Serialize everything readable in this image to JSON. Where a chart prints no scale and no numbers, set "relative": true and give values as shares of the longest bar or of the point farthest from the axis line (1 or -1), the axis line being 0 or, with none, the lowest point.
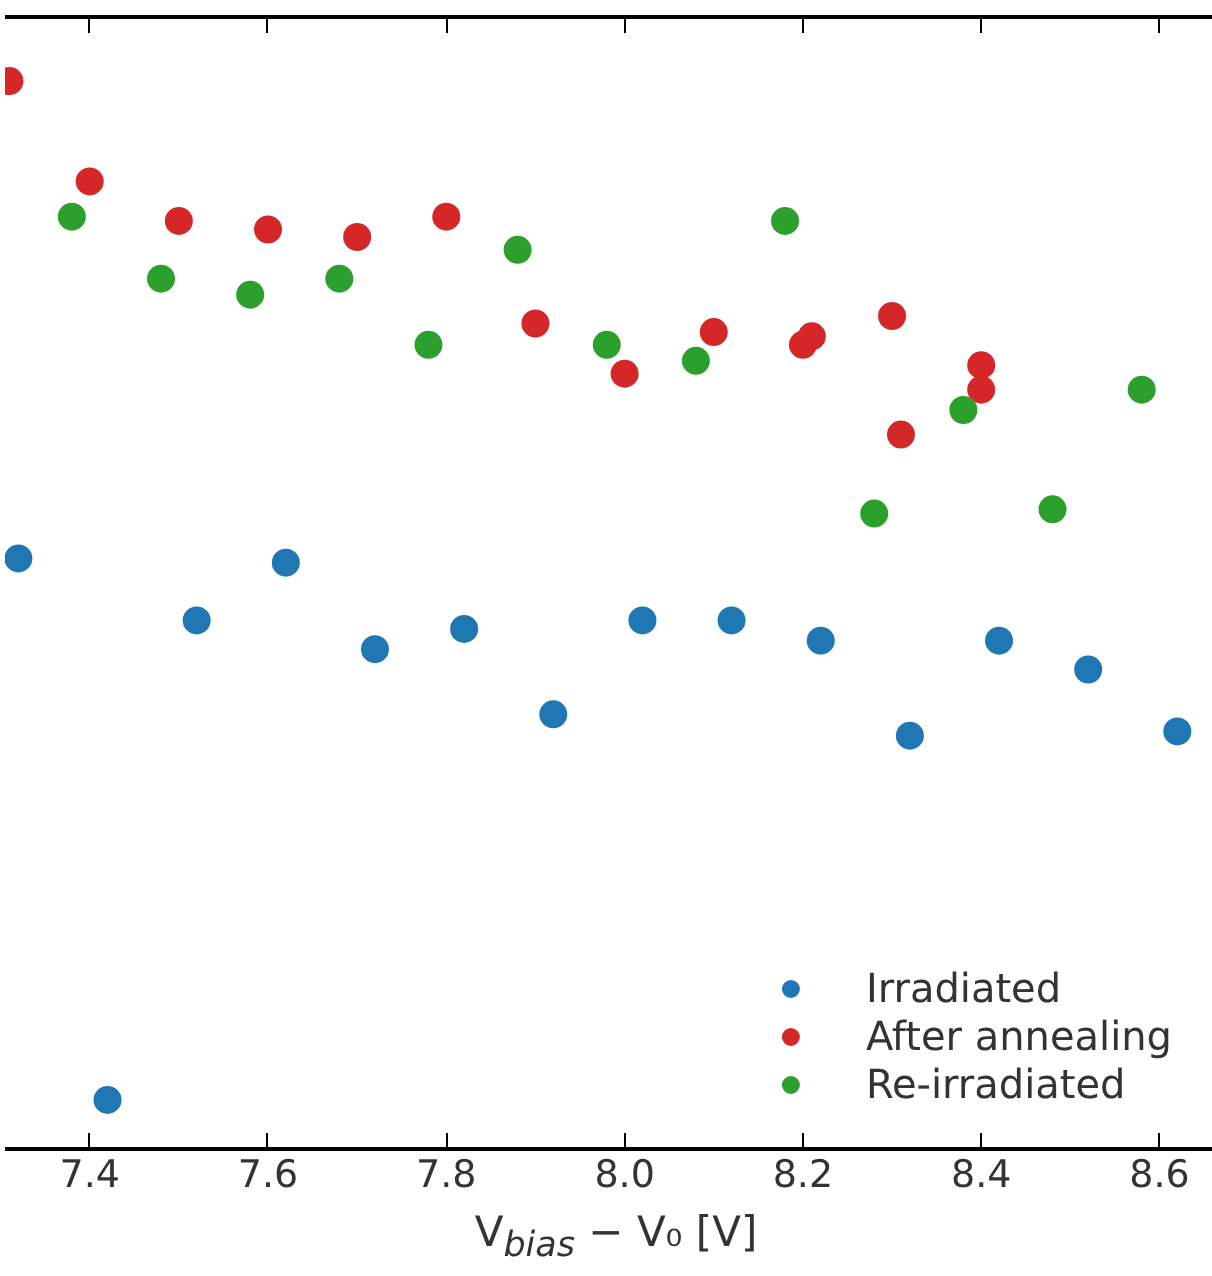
{
  "chart_data": {
    "type": "scatter",
    "relative": true,
    "xlabel": "V$_{bias}$ − V₀ [V]",
    "xlim": [
      7.305,
      8.66
    ],
    "xticks": [
      7.4,
      7.6,
      7.8,
      {
        "value": 8,
        "label": "8.0"
      },
      8.2,
      8.4,
      8.6
    ],
    "grid": false,
    "legend": "bottom right",
    "marker": "circle",
    "tick_labels": "x",
    "series": [
      {
        "name": "Irradiated",
        "color": "#1f77b4",
        "x": [
          7.32,
          7.42,
          7.52,
          7.62,
          7.72,
          7.82,
          7.92,
          8.02,
          8.12,
          8.22,
          8.32,
          8.42,
          8.52,
          8.62
        ],
        "values": [
          0.553,
          0.046,
          0.495,
          0.549,
          0.468,
          0.487,
          0.407,
          0.495,
          0.495,
          0.476,
          0.387,
          0.476,
          0.449,
          0.391
        ]
      },
      {
        "name": "After annealing",
        "color": "#d62728",
        "x": [
          7.31,
          7.4,
          7.5,
          7.6,
          7.7,
          7.8,
          7.9,
          8.0,
          8.1,
          8.2,
          8.21,
          8.3,
          8.31,
          8.4,
          8.4
        ],
        "values": [
          1.0,
          0.906,
          0.869,
          0.861,
          0.854,
          0.873,
          0.773,
          0.726,
          0.765,
          0.753,
          0.761,
          0.78,
          0.669,
          0.734,
          0.711
        ]
      },
      {
        "name": "Re-irradiated",
        "color": "#2ca02c",
        "x": [
          7.38,
          7.48,
          7.58,
          7.68,
          7.78,
          7.88,
          7.98,
          8.08,
          8.18,
          8.28,
          8.38,
          8.48,
          8.58
        ],
        "values": [
          0.873,
          0.815,
          0.8,
          0.815,
          0.753,
          0.842,
          0.753,
          0.738,
          0.869,
          0.595,
          0.692,
          0.599,
          0.711
        ]
      }
    ]
  }
}
